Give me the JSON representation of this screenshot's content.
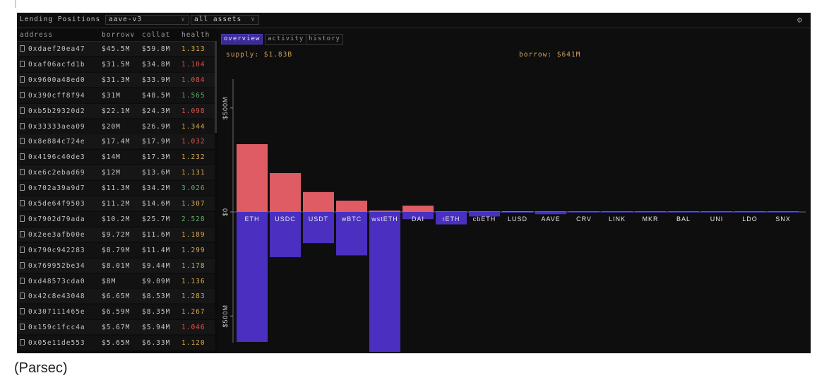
{
  "header": {
    "title": "Lending Positions",
    "protocol_select": "aave-v3",
    "asset_select": "all assets",
    "settings_icon": "gear-icon"
  },
  "table": {
    "columns": [
      "address",
      "borrow",
      "collat",
      "health"
    ],
    "sort_indicator": "chevron-down-icon",
    "rows": [
      {
        "address": "0xdaef20ea47",
        "borrow": "$45.5M",
        "collat": "$59.8M",
        "health": "1.313"
      },
      {
        "address": "0xaf06acfd1b",
        "borrow": "$31.5M",
        "collat": "$34.8M",
        "health": "1.104"
      },
      {
        "address": "0x9600a48ed0",
        "borrow": "$31.3M",
        "collat": "$33.9M",
        "health": "1.084"
      },
      {
        "address": "0x390cff8f94",
        "borrow": "$31M",
        "collat": "$48.5M",
        "health": "1.565"
      },
      {
        "address": "0xb5b29320d2",
        "borrow": "$22.1M",
        "collat": "$24.3M",
        "health": "1.098"
      },
      {
        "address": "0x33333aea09",
        "borrow": "$20M",
        "collat": "$26.9M",
        "health": "1.344"
      },
      {
        "address": "0x8e884c724e",
        "borrow": "$17.4M",
        "collat": "$17.9M",
        "health": "1.032"
      },
      {
        "address": "0x4196c40de3",
        "borrow": "$14M",
        "collat": "$17.3M",
        "health": "1.232"
      },
      {
        "address": "0xe6c2ebad69",
        "borrow": "$12M",
        "collat": "$13.6M",
        "health": "1.131"
      },
      {
        "address": "0x702a39a9d7",
        "borrow": "$11.3M",
        "collat": "$34.2M",
        "health": "3.026"
      },
      {
        "address": "0x5de64f9503",
        "borrow": "$11.2M",
        "collat": "$14.6M",
        "health": "1.307"
      },
      {
        "address": "0x7902d79ada",
        "borrow": "$10.2M",
        "collat": "$25.7M",
        "health": "2.528"
      },
      {
        "address": "0x2ee3afb00e",
        "borrow": "$9.72M",
        "collat": "$11.6M",
        "health": "1.189"
      },
      {
        "address": "0x790c942283",
        "borrow": "$8.79M",
        "collat": "$11.4M",
        "health": "1.299"
      },
      {
        "address": "0x769952be34",
        "borrow": "$8.01M",
        "collat": "$9.44M",
        "health": "1.178"
      },
      {
        "address": "0xd48573cda0",
        "borrow": "$8M",
        "collat": "$9.09M",
        "health": "1.136"
      },
      {
        "address": "0x42c8e43048",
        "borrow": "$6.65M",
        "collat": "$8.53M",
        "health": "1.283"
      },
      {
        "address": "0x307111465e",
        "borrow": "$6.59M",
        "collat": "$8.35M",
        "health": "1.267"
      },
      {
        "address": "0x159c1fcc4a",
        "borrow": "$5.67M",
        "collat": "$5.94M",
        "health": "1.046"
      },
      {
        "address": "0x05e11de553",
        "borrow": "$5.65M",
        "collat": "$6.33M",
        "health": "1.120"
      }
    ]
  },
  "panel": {
    "tabs": [
      "overview",
      "activity",
      "history"
    ],
    "active_tab": "overview",
    "supply_label": "supply: $1.83B",
    "borrow_label": "borrow: $641M"
  },
  "colors": {
    "supply": "#e05c64",
    "borrow": "#4a2fc0",
    "health_low": "#d9534f",
    "health_mid": "#d4a84b",
    "health_high": "#5faa6a"
  },
  "chart_data": {
    "type": "bar",
    "categories": [
      "ETH",
      "USDC",
      "USDT",
      "wBTC",
      "wstETH",
      "DAI",
      "rETH",
      "cbETH",
      "LUSD",
      "AAVE",
      "CRV",
      "LINK",
      "MKR",
      "BAL",
      "UNI",
      "LDO",
      "SNX"
    ],
    "series": [
      {
        "name": "supply",
        "values": [
          300,
          172,
          88,
          50,
          6,
          28,
          1,
          2,
          3,
          1,
          1,
          0.5,
          0.4,
          0.3,
          0.2,
          0.2,
          0.1
        ]
      },
      {
        "name": "borrow",
        "values": [
          -575,
          -200,
          -138,
          -192,
          -620,
          -32,
          -55,
          -20,
          -3,
          -10,
          -2,
          -1,
          -0.5,
          -0.3,
          -0.2,
          -0.2,
          -0.1
        ]
      }
    ],
    "ylim": [
      -620,
      620
    ],
    "ytick_labels": [
      "$500M",
      "$0",
      "$500M"
    ],
    "ytick_values": [
      500,
      0,
      -500
    ]
  }
}
